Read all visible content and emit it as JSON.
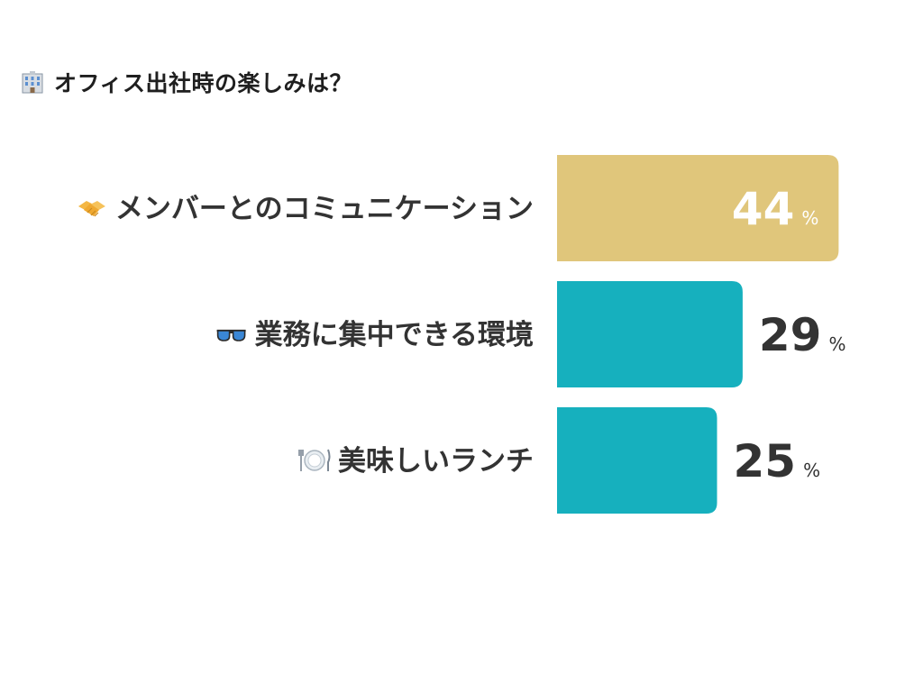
{
  "title": {
    "icon": "office-building-icon",
    "text": "オフィス出社時の楽しみは？"
  },
  "colors": {
    "highlight": "#E0C67B",
    "bar": "#16B0BE",
    "label_text": "#333333",
    "inside_value_text": "#FFFFFF"
  },
  "chart_data": {
    "type": "bar",
    "orientation": "horizontal",
    "title": "オフィス出社時の楽しみは？",
    "categories": [
      "メンバーとのコミュニケーション",
      "業務に集中できる環境",
      "美味しいランチ"
    ],
    "category_icons": [
      "handshake-icon",
      "sunglasses-icon",
      "plate-with-cutlery-icon"
    ],
    "values": [
      44,
      29,
      25
    ],
    "unit": "%",
    "highlighted_index": 0,
    "xlabel": "",
    "ylabel": "",
    "grid": false,
    "legend": "none"
  }
}
